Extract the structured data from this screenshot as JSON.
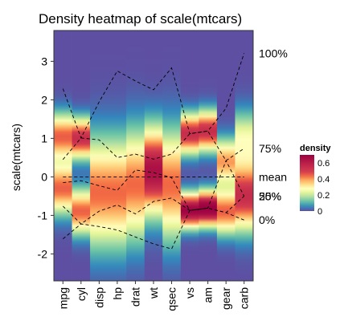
{
  "chart_data": {
    "type": "heatmap",
    "title": "Density heatmap of scale(mtcars)",
    "xlabel": "",
    "ylabel": "scale(mtcars)",
    "categories": [
      "mpg",
      "cyl",
      "disp",
      "hp",
      "drat",
      "wt",
      "qsec",
      "vs",
      "am",
      "gear",
      "carb"
    ],
    "ylim": [
      -2.7,
      3.8
    ],
    "yticks": [
      -2,
      -1,
      0,
      1,
      2,
      3
    ],
    "grid": false,
    "legend": {
      "title": "density",
      "position": "right",
      "ticks": [
        0.6,
        0.4,
        0.2,
        0
      ],
      "range": [
        0,
        0.7
      ]
    },
    "colors": {
      "low": "#5e4fa2",
      "mid": "#ffffbf",
      "high": "#9e0142",
      "border": "#333333",
      "quantile_line": "#000000"
    },
    "density_peaks": [
      {
        "peaks": [
          [
            -0.3,
            0.45,
            0.45
          ],
          [
            1.05,
            0.4,
            0.45
          ]
        ]
      },
      {
        "peaks": [
          [
            -0.9,
            0.4,
            0.45
          ],
          [
            1.0,
            0.35,
            0.55
          ]
        ]
      },
      {
        "peaks": [
          [
            -0.4,
            0.95,
            0.44
          ]
        ]
      },
      {
        "peaks": [
          [
            -0.4,
            0.95,
            0.44
          ]
        ]
      },
      {
        "peaks": [
          [
            -0.2,
            0.95,
            0.44
          ]
        ]
      },
      {
        "peaks": [
          [
            0.15,
            0.75,
            0.65
          ]
        ]
      },
      {
        "peaks": [
          [
            -0.2,
            0.95,
            0.44
          ]
        ]
      },
      {
        "peaks": [
          [
            -0.87,
            0.3,
            0.7
          ],
          [
            1.12,
            0.35,
            0.55
          ]
        ]
      },
      {
        "peaks": [
          [
            -0.82,
            0.3,
            0.75
          ],
          [
            1.19,
            0.35,
            0.55
          ]
        ]
      },
      {
        "peaks": [
          [
            -0.9,
            0.4,
            0.45
          ],
          [
            0.4,
            0.4,
            0.4
          ]
        ]
      },
      {
        "peaks": [
          [
            -0.5,
            0.6,
            0.55
          ],
          [
            1.0,
            0.5,
            0.25
          ]
        ]
      }
    ],
    "quantiles": [
      {
        "label": "100%",
        "values": [
          2.29,
          1.01,
          1.95,
          2.75,
          2.49,
          2.26,
          2.83,
          1.12,
          1.19,
          1.78,
          3.21
        ]
      },
      {
        "label": "75%",
        "values": [
          0.45,
          1.01,
          0.96,
          0.5,
          0.59,
          0.46,
          0.59,
          1.12,
          1.19,
          0.42,
          0.74
        ]
      },
      {
        "label": "mean",
        "values": [
          0,
          0,
          0,
          0,
          0,
          0,
          0,
          0,
          0,
          0,
          0
        ]
      },
      {
        "label": "50%",
        "values": [
          -0.15,
          -0.1,
          -0.23,
          -0.35,
          0.18,
          0.11,
          -0.02,
          -0.87,
          -0.81,
          0.42,
          -0.5
        ]
      },
      {
        "label": "25%",
        "values": [
          -0.76,
          -1.22,
          -0.89,
          -0.73,
          -0.96,
          -0.64,
          -0.55,
          -0.87,
          -0.81,
          -0.93,
          -0.5
        ]
      },
      {
        "label": "0%",
        "values": [
          -1.61,
          -1.22,
          -1.29,
          -1.38,
          -1.56,
          -1.74,
          -1.87,
          -0.87,
          -0.81,
          -0.93,
          -1.12
        ]
      }
    ]
  }
}
